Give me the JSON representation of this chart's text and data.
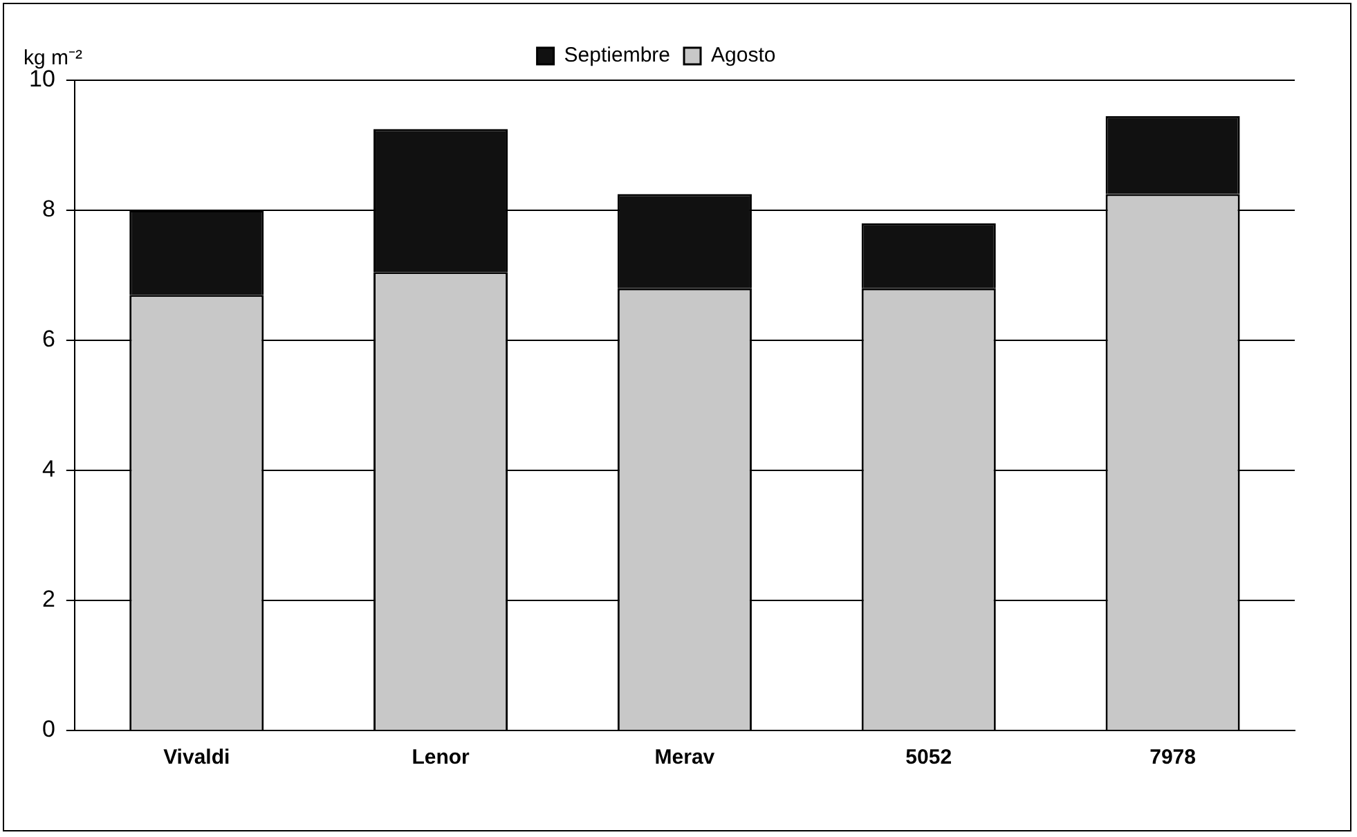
{
  "chart_data": {
    "type": "bar",
    "stacked": true,
    "ylabel": "kg m⁻²",
    "categories": [
      "Vivaldi",
      "Lenor",
      "Merav",
      "5052",
      "7978"
    ],
    "series": [
      {
        "name": "Agosto",
        "color": "#c8c8c8",
        "values": [
          6.7,
          7.05,
          6.8,
          6.8,
          8.25
        ]
      },
      {
        "name": "Septiembre",
        "color": "#111111",
        "values": [
          1.3,
          2.2,
          1.45,
          1.0,
          1.2
        ]
      }
    ],
    "ylim": [
      0,
      10
    ],
    "yticks": [
      0,
      2,
      4,
      6,
      8,
      10
    ],
    "grid": "y",
    "legend": "top"
  }
}
